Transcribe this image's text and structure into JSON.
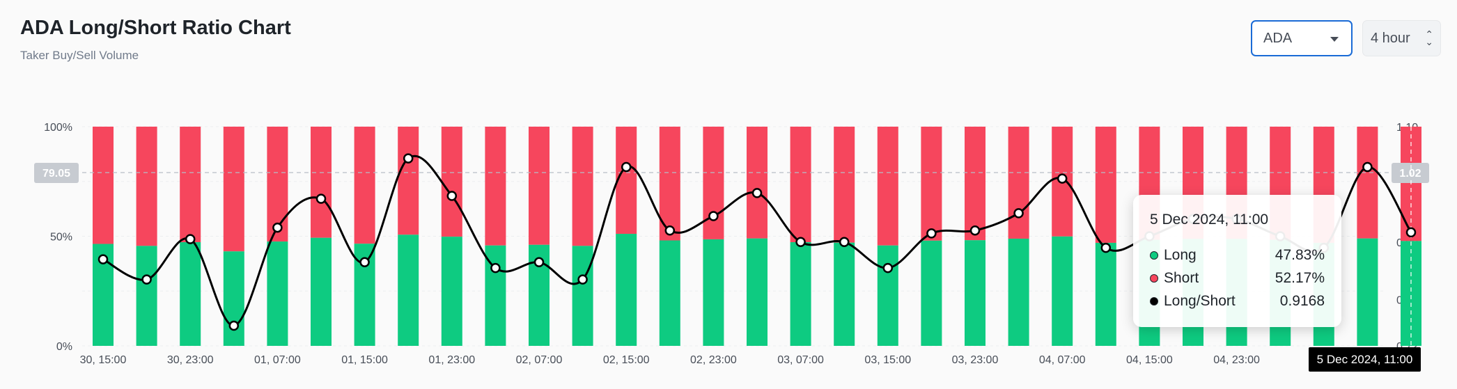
{
  "header": {
    "title": "ADA Long/Short Ratio Chart",
    "subtitle": "Taker Buy/Sell Volume"
  },
  "controls": {
    "symbol": "ADA",
    "period": "4 hour"
  },
  "colors": {
    "long": "#0ecb81",
    "short": "#f6465d",
    "ratio_line": "#000000"
  },
  "chart_data": {
    "type": "bar",
    "stacked": true,
    "left_axis": {
      "ticks": [
        "100%",
        "50%",
        "0%"
      ],
      "range": [
        0,
        100
      ]
    },
    "right_axis": {
      "ticks": [
        "1.10",
        "0.90",
        "0.80",
        "0.72"
      ],
      "range": [
        0.72,
        1.1
      ]
    },
    "x_tick_labels": [
      "30, 15:00",
      "30, 23:00",
      "01, 07:00",
      "01, 15:00",
      "01, 23:00",
      "02, 07:00",
      "02, 15:00",
      "02, 23:00",
      "03, 07:00",
      "03, 15:00",
      "03, 23:00",
      "04, 07:00",
      "04, 15:00",
      "04, 23:00",
      "05"
    ],
    "long_pct": [
      46.5,
      45.6,
      47.3,
      43.1,
      47.6,
      49.3,
      46.6,
      50.7,
      49.8,
      45.8,
      46.1,
      45.6,
      51.1,
      48.1,
      48.6,
      49.0,
      47.3,
      47.1,
      45.8,
      48.0,
      48.2,
      48.9,
      49.9,
      47.0,
      48.4,
      48.8,
      48.8,
      48.4,
      47.0,
      49.0,
      47.83
    ],
    "ratio": [
      0.87,
      0.835,
      0.905,
      0.755,
      0.925,
      0.975,
      0.865,
      1.045,
      0.98,
      0.855,
      0.865,
      0.835,
      1.03,
      0.92,
      0.945,
      0.985,
      0.9,
      0.9,
      0.855,
      0.915,
      0.92,
      0.95,
      1.01,
      0.89,
      0.91,
      0.94,
      0.94,
      0.91,
      0.89,
      1.03,
      0.9168
    ],
    "crosshair": {
      "left_label": "79.05",
      "right_label": "1.02",
      "y_left_value": 79.05
    },
    "tooltip": {
      "date": "5 Dec 2024, 11:00",
      "rows": [
        {
          "label": "Long",
          "value": "47.83%"
        },
        {
          "label": "Short",
          "value": "52.17%"
        },
        {
          "label": "Long/Short",
          "value": "0.9168"
        }
      ]
    },
    "x_crosshair_label": "5 Dec 2024, 11:00"
  }
}
